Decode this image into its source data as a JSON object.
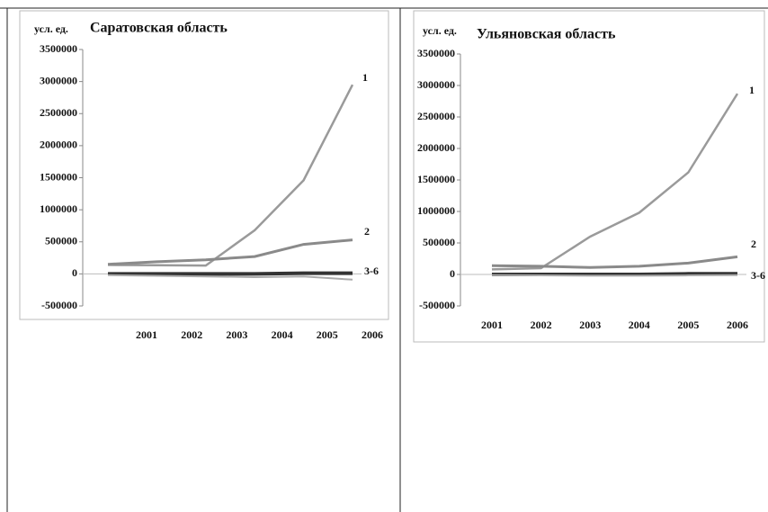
{
  "chart_data": [
    {
      "type": "line",
      "title": "Саратовская область",
      "ylabel": "усл. ед.",
      "categories": [
        "2001",
        "2002",
        "2003",
        "2004",
        "2005",
        "2006"
      ],
      "ylim": [
        -500000,
        3500000
      ],
      "yticks": [
        -500000,
        0,
        500000,
        1000000,
        1500000,
        2000000,
        2500000,
        3000000,
        3500000
      ],
      "series": [
        {
          "name": "1",
          "color": "#9a9a9a",
          "values": [
            140000,
            135000,
            130000,
            680000,
            1460000,
            2950000
          ]
        },
        {
          "name": "2",
          "color": "#8a8a8a",
          "values": [
            150000,
            190000,
            220000,
            270000,
            460000,
            530000
          ]
        },
        {
          "name": "3-6",
          "color": "#333333",
          "values": [
            0,
            0,
            0,
            0,
            10000,
            10000
          ]
        },
        {
          "color": "#aaaaaa",
          "values": [
            -20000,
            -30000,
            -40000,
            -50000,
            -40000,
            -90000
          ]
        }
      ]
    },
    {
      "type": "line",
      "title": "Ульяновская область",
      "ylabel": "усл. ед.",
      "categories": [
        "2001",
        "2002",
        "2003",
        "2004",
        "2005",
        "2006"
      ],
      "ylim": [
        -500000,
        3500000
      ],
      "yticks": [
        -500000,
        0,
        500000,
        1000000,
        1500000,
        2000000,
        2500000,
        3000000,
        3500000
      ],
      "series": [
        {
          "name": "1",
          "color": "#9a9a9a",
          "values": [
            80000,
            100000,
            600000,
            980000,
            1620000,
            2870000
          ]
        },
        {
          "name": "2",
          "color": "#8a8a8a",
          "values": [
            140000,
            130000,
            110000,
            130000,
            180000,
            280000
          ]
        },
        {
          "name": "3-6",
          "color": "#333333",
          "values": [
            0,
            0,
            0,
            0,
            10000,
            10000
          ]
        },
        {
          "color": "#aaaaaa",
          "values": [
            -10000,
            -15000,
            -20000,
            -20000,
            -15000,
            -10000
          ]
        }
      ]
    }
  ]
}
